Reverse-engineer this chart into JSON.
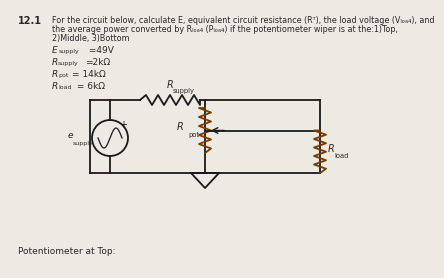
{
  "title_num": "12.1",
  "header_line1": "For the circuit below, calculate E, equivalent circuit resistance (Rᵀ), the load voltage (Vₗₒₐ₄), and",
  "header_line2": "the average power converted by Rₗₒₐ₄ (Pₗₒₐ₄) if the potentiometer wiper is at the:1)Top,",
  "header_line3": "2)Middle, 3)Bottom",
  "param1_main": "E",
  "param1_sub": "supply",
  "param1_val": " =49V",
  "param2_main": "R",
  "param2_sub": "supply",
  "param2_val": "=2kΩ",
  "param3_main": "R",
  "param3_sub": "pot",
  "param3_val": "= 14kΩ",
  "param4_main": "R",
  "param4_sub": "load",
  "param4_val": " = 6kΩ",
  "bottom_label": "Potentiometer at Top:",
  "bg_color": "#ede9e3",
  "text_color": "#2a2a2a",
  "wire_color": "#1a1a1a",
  "rsupply_color": "#1a1a1a",
  "rpot_color": "#7a3a00",
  "rload_color": "#7a3a00",
  "source_color": "#1a1a1a",
  "esupply_label": "e",
  "esupply_sub": "supply",
  "rsupply_label": "R",
  "rsupply_sub": "supply",
  "rpot_label": "R",
  "rpot_sub": "pot",
  "rload_label": "R",
  "rload_sub": "load"
}
